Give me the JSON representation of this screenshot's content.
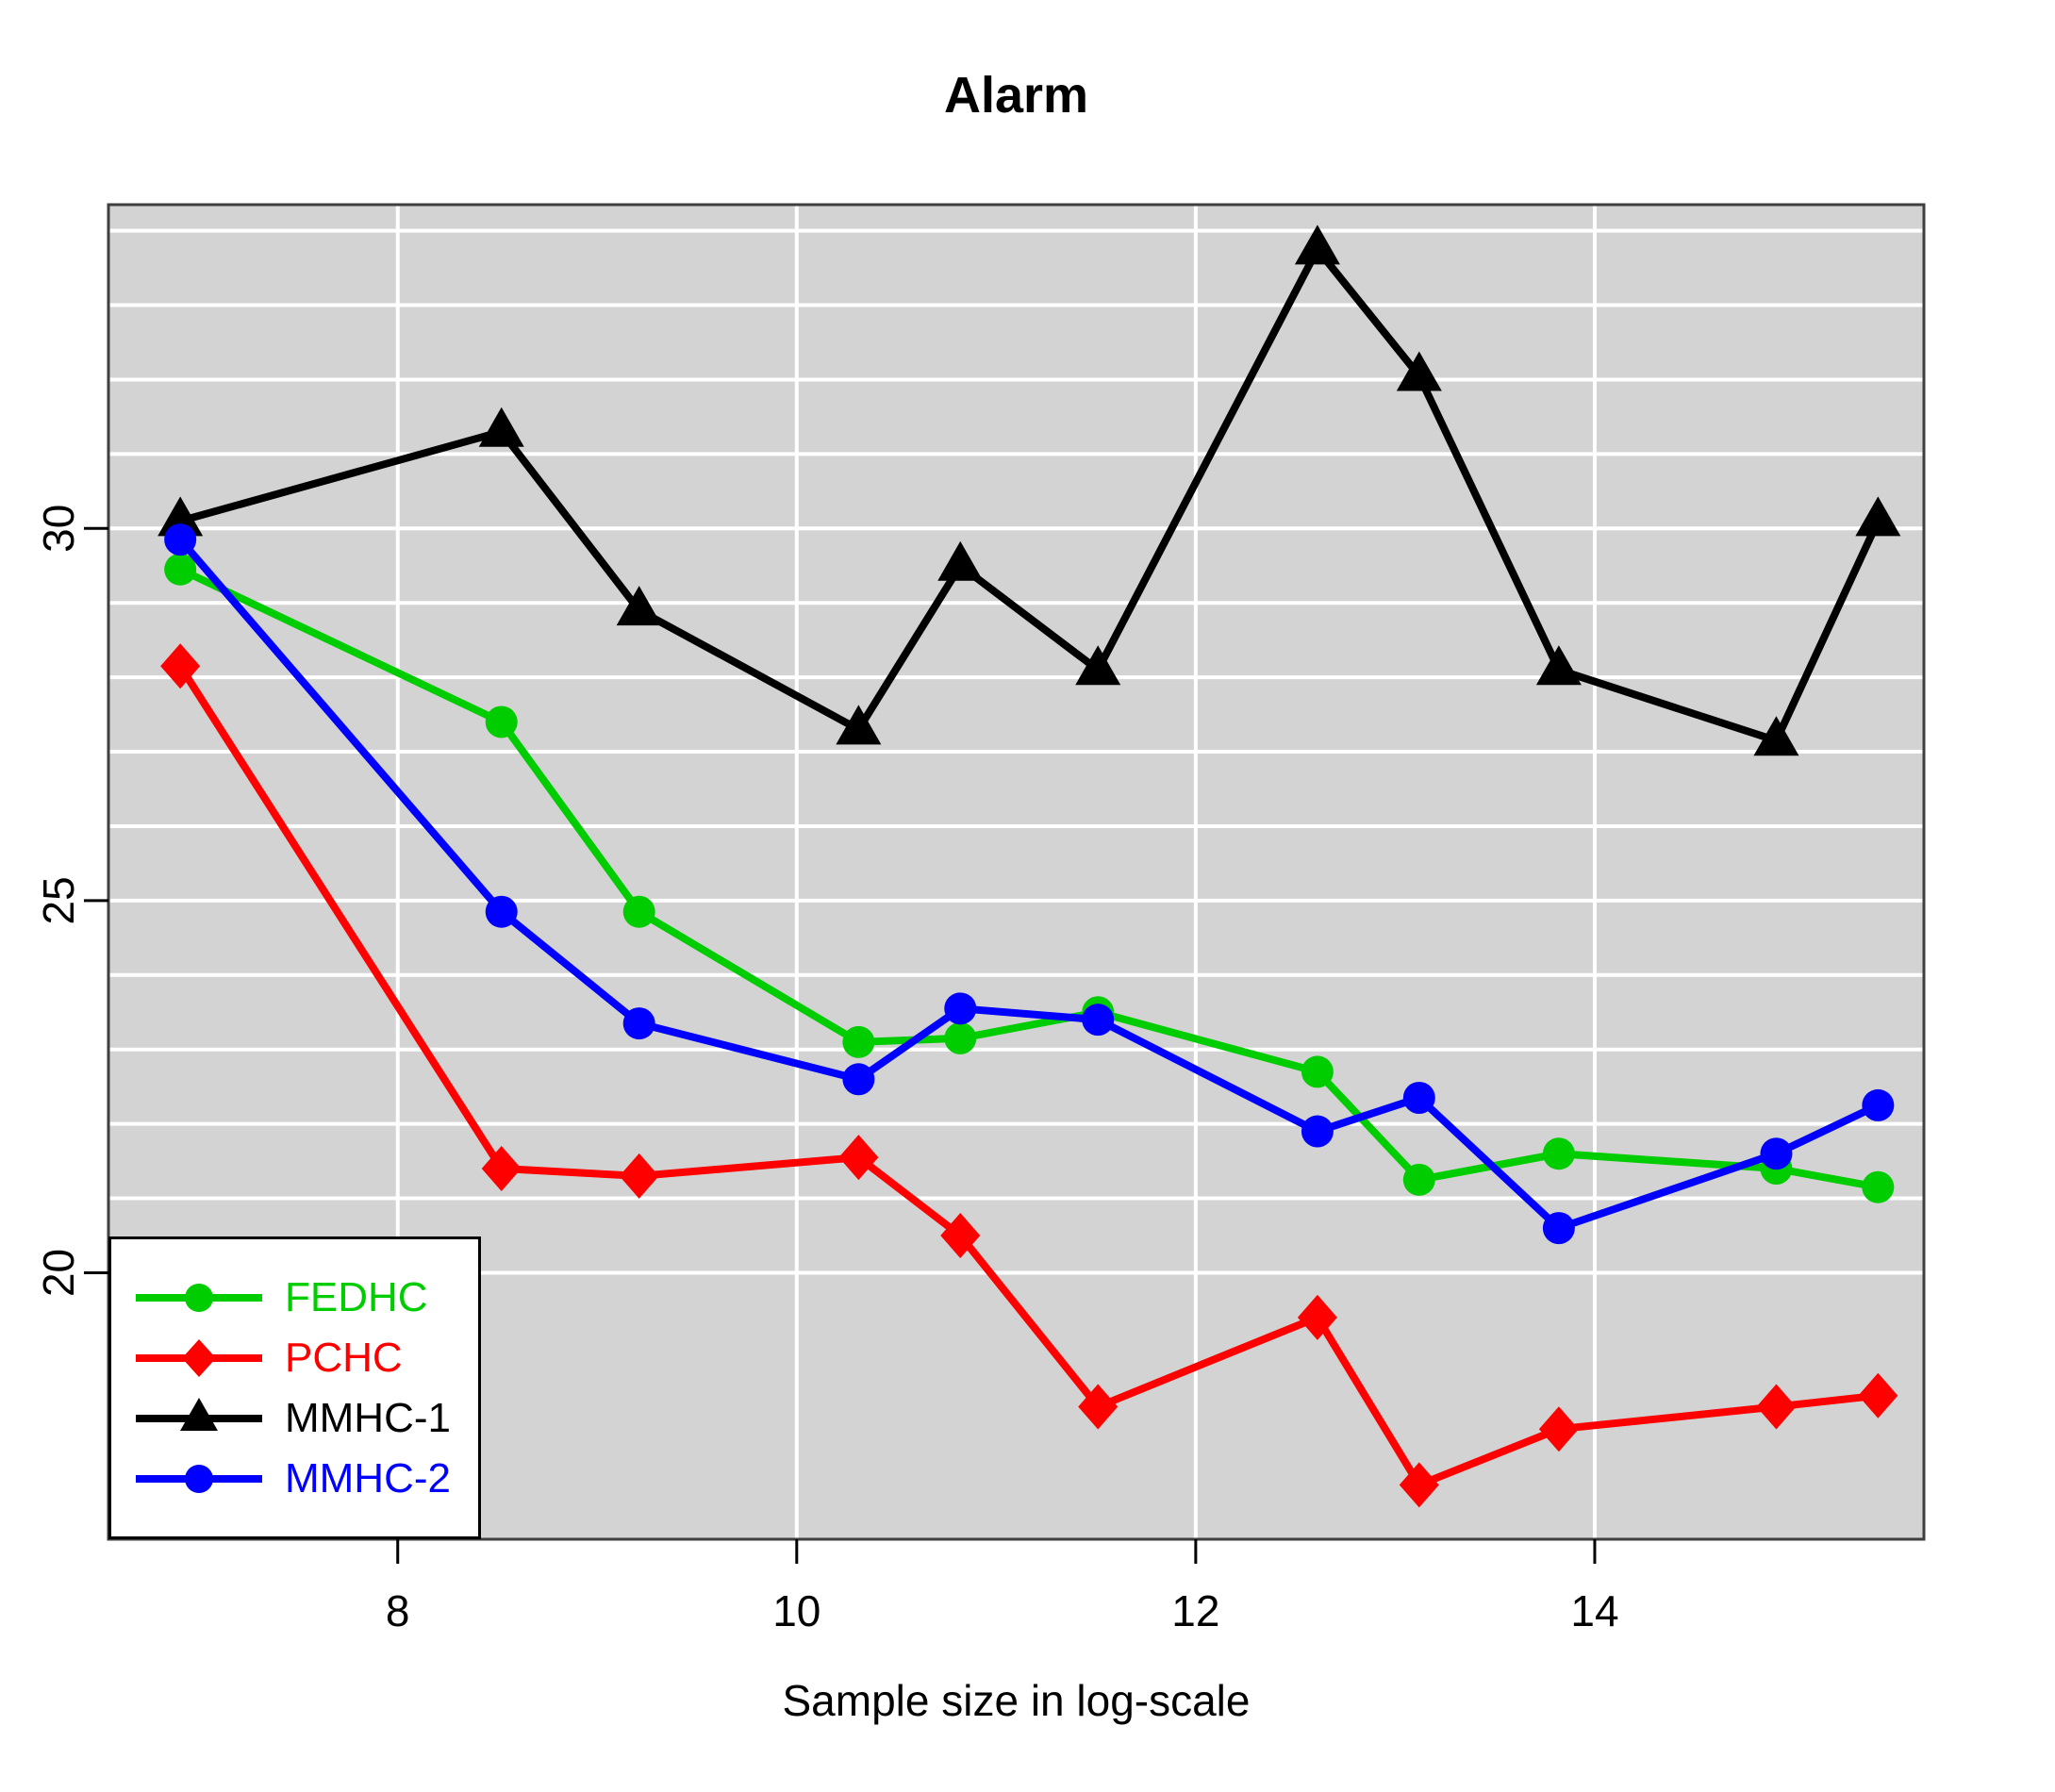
{
  "chart_data": {
    "type": "line",
    "title": "Alarm",
    "xlabel": "Sample size in log-scale",
    "ylabel": "",
    "x_ticks": [
      8,
      10,
      12,
      14
    ],
    "y_ticks": [
      20,
      25,
      30
    ],
    "xlim": [
      6.55,
      15.65
    ],
    "ylim": [
      16.42,
      34.35
    ],
    "grid": {
      "bg": "#d3d3d3",
      "line_color": "#ffffff",
      "border_color": "#3f3f3f",
      "h_lines": [
        20,
        21,
        22,
        23,
        24,
        25,
        26,
        27,
        28,
        29,
        30,
        31,
        32,
        33,
        34
      ],
      "v_lines": [
        8,
        10,
        12,
        14
      ]
    },
    "x": [
      6.91,
      8.52,
      9.21,
      10.31,
      10.82,
      11.51,
      12.61,
      13.12,
      13.82,
      14.91,
      15.42
    ],
    "series": [
      {
        "name": "FEDHC",
        "color": "#00cd00",
        "marker": "circle",
        "values": [
          29.45,
          27.4,
          24.85,
          23.1,
          23.15,
          23.5,
          22.7,
          21.25,
          21.6,
          21.4,
          21.15
        ]
      },
      {
        "name": "PCHC",
        "color": "#ff0000",
        "marker": "diamond",
        "values": [
          28.15,
          21.4,
          21.3,
          21.55,
          20.5,
          18.2,
          19.4,
          17.15,
          17.9,
          18.2,
          18.35
        ]
      },
      {
        "name": "MMHC-1",
        "color": "#000000",
        "marker": "triangle",
        "values": [
          30.1,
          31.3,
          28.9,
          27.3,
          29.5,
          28.1,
          33.75,
          32.05,
          28.1,
          27.15,
          30.1
        ]
      },
      {
        "name": "MMHC-2",
        "color": "#0000ff",
        "marker": "circle",
        "values": [
          29.85,
          24.85,
          23.35,
          22.6,
          23.55,
          23.4,
          21.9,
          22.35,
          20.6,
          21.6,
          22.25
        ]
      }
    ],
    "legend_position": "bottom-left"
  }
}
